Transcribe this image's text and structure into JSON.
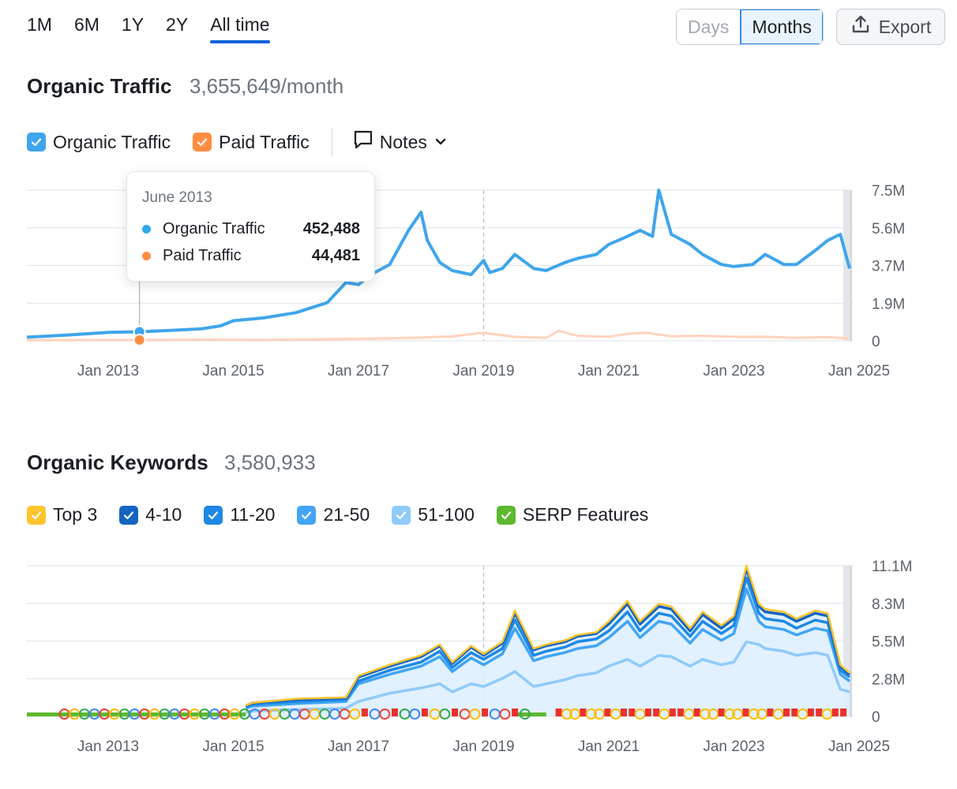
{
  "range_tabs": [
    "1M",
    "6M",
    "1Y",
    "2Y",
    "All time"
  ],
  "range_active": "All time",
  "granularity": {
    "days": "Days",
    "months": "Months",
    "selected": "Months"
  },
  "export_label": "Export",
  "traffic": {
    "title": "Organic Traffic",
    "value": "3,655,649/month",
    "legend": [
      {
        "label": "Organic Traffic",
        "color": "#3fa5ec",
        "checked": true
      },
      {
        "label": "Paid Traffic",
        "color": "#ff8c42",
        "checked": true
      }
    ],
    "notes_label": "Notes",
    "tooltip": {
      "date": "June 2013",
      "rows": [
        {
          "label": "Organic Traffic",
          "value": "452,488",
          "color": "#2fa8ea"
        },
        {
          "label": "Paid Traffic",
          "value": "44,481",
          "color": "#ff8c42"
        }
      ]
    }
  },
  "keywords": {
    "title": "Organic Keywords",
    "value": "3,580,933",
    "legend": [
      {
        "label": "Top 3",
        "color": "#ffc42e"
      },
      {
        "label": "4-10",
        "color": "#1565c0"
      },
      {
        "label": "11-20",
        "color": "#1e88e5"
      },
      {
        "label": "21-50",
        "color": "#42a5f5"
      },
      {
        "label": "51-100",
        "color": "#90caf9"
      },
      {
        "label": "SERP Features",
        "color": "#5cb82e"
      }
    ]
  },
  "colors": {
    "accent": "#0a63d6",
    "organic": "#3fa5ec",
    "paid": "#ffd3bd",
    "serp_green": "#5cb82e",
    "serp_red": "#e8312d"
  },
  "chart_data": [
    {
      "type": "line",
      "x_ticks": [
        "Jan 2013",
        "Jan 2015",
        "Jan 2017",
        "Jan 2019",
        "Jan 2021",
        "Jan 2023",
        "Jan 2025"
      ],
      "y_ticks": [
        "7.5M",
        "5.6M",
        "3.7M",
        "1.9M",
        "0"
      ],
      "ylim": [
        0,
        7500000
      ],
      "xlim": [
        2011.7,
        2024.9
      ],
      "grid": true,
      "series": [
        {
          "name": "Organic Traffic",
          "x": [
            2011.7,
            2012.0,
            2012.5,
            2013.0,
            2013.5,
            2014.0,
            2014.5,
            2014.8,
            2015.0,
            2015.5,
            2016.0,
            2016.5,
            2016.8,
            2017.0,
            2017.2,
            2017.5,
            2017.8,
            2018.0,
            2018.1,
            2018.3,
            2018.5,
            2018.8,
            2019.0,
            2019.1,
            2019.3,
            2019.5,
            2019.8,
            2020.0,
            2020.3,
            2020.5,
            2020.8,
            2021.0,
            2021.3,
            2021.5,
            2021.7,
            2021.8,
            2022.0,
            2022.3,
            2022.5,
            2022.8,
            2023.0,
            2023.3,
            2023.5,
            2023.8,
            2024.0,
            2024.3,
            2024.5,
            2024.7,
            2024.85
          ],
          "y": [
            180000,
            230000,
            320000,
            420000,
            452488,
            520000,
            600000,
            750000,
            1000000,
            1150000,
            1400000,
            1900000,
            2900000,
            2800000,
            3300000,
            3800000,
            5500000,
            6400000,
            5000000,
            3900000,
            3500000,
            3300000,
            4000000,
            3400000,
            3600000,
            4300000,
            3600000,
            3500000,
            3900000,
            4100000,
            4300000,
            4800000,
            5200000,
            5500000,
            5200000,
            7500000,
            5300000,
            4800000,
            4300000,
            3800000,
            3700000,
            3800000,
            4300000,
            3800000,
            3800000,
            4500000,
            5000000,
            5300000,
            3600000
          ]
        },
        {
          "name": "Paid Traffic",
          "x": [
            2011.7,
            2012.5,
            2013.0,
            2013.5,
            2014.5,
            2015.5,
            2016.5,
            2017.5,
            2018.0,
            2018.5,
            2019.0,
            2019.5,
            2020.0,
            2020.2,
            2020.5,
            2021.0,
            2021.3,
            2021.6,
            2022.0,
            2022.5,
            2023.0,
            2023.5,
            2024.0,
            2024.5,
            2024.85
          ],
          "y": [
            30000,
            40000,
            40000,
            44481,
            60000,
            50000,
            80000,
            120000,
            160000,
            220000,
            400000,
            200000,
            150000,
            500000,
            250000,
            200000,
            350000,
            400000,
            230000,
            250000,
            200000,
            200000,
            150000,
            180000,
            120000
          ]
        }
      ]
    },
    {
      "type": "area",
      "x_ticks": [
        "Jan 2013",
        "Jan 2015",
        "Jan 2017",
        "Jan 2019",
        "Jan 2021",
        "Jan 2023",
        "Jan 2025"
      ],
      "y_ticks": [
        "11.1M",
        "8.3M",
        "5.5M",
        "2.8M",
        "0"
      ],
      "ylim": [
        0,
        11100000
      ],
      "xlim": [
        2011.7,
        2024.9
      ],
      "grid": true,
      "x": [
        2015.2,
        2015.3,
        2016.0,
        2016.8,
        2017.0,
        2017.5,
        2018.0,
        2018.3,
        2018.5,
        2018.8,
        2019.0,
        2019.3,
        2019.5,
        2019.8,
        2020.0,
        2020.3,
        2020.5,
        2020.8,
        2021.0,
        2021.3,
        2021.5,
        2021.8,
        2022.0,
        2022.3,
        2022.5,
        2022.8,
        2023.0,
        2023.2,
        2023.4,
        2023.5,
        2023.8,
        2024.0,
        2024.3,
        2024.5,
        2024.7,
        2024.85
      ],
      "series": [
        {
          "name": "Top 3",
          "values": [
            0.8,
            1.0,
            1.3,
            1.4,
            3.0,
            3.8,
            4.5,
            5.3,
            4.0,
            5.2,
            4.6,
            5.5,
            7.8,
            5.0,
            5.3,
            5.6,
            6.0,
            6.2,
            7.0,
            8.5,
            7.0,
            8.3,
            8.1,
            6.5,
            7.7,
            6.7,
            7.4,
            11.1,
            8.3,
            7.9,
            7.7,
            7.2,
            7.8,
            7.6,
            3.8,
            3.2
          ]
        },
        {
          "name": "4-10",
          "values": [
            0.78,
            0.98,
            1.25,
            1.35,
            2.9,
            3.7,
            4.4,
            5.2,
            3.9,
            5.1,
            4.5,
            5.4,
            7.6,
            4.9,
            5.2,
            5.5,
            5.9,
            6.1,
            6.8,
            8.3,
            6.8,
            8.1,
            7.9,
            6.3,
            7.5,
            6.5,
            7.2,
            10.9,
            8.1,
            7.7,
            7.5,
            7.0,
            7.6,
            7.4,
            3.7,
            3.1
          ]
        },
        {
          "name": "11-20",
          "values": [
            0.7,
            0.9,
            1.1,
            1.25,
            2.6,
            3.4,
            4.0,
            4.8,
            3.6,
            4.7,
            4.2,
            5.0,
            7.1,
            4.5,
            4.8,
            5.1,
            5.5,
            5.7,
            6.3,
            7.7,
            6.3,
            7.6,
            7.4,
            5.9,
            7.0,
            6.1,
            6.7,
            10.2,
            7.6,
            7.2,
            7.0,
            6.5,
            7.1,
            6.9,
            3.4,
            2.9
          ]
        },
        {
          "name": "21-50",
          "values": [
            0.6,
            0.75,
            0.95,
            1.1,
            2.4,
            3.1,
            3.7,
            4.4,
            3.3,
            4.3,
            3.8,
            4.6,
            6.5,
            4.1,
            4.4,
            4.7,
            5.0,
            5.2,
            5.8,
            7.0,
            5.8,
            7.0,
            6.8,
            5.4,
            6.4,
            5.6,
            6.1,
            9.4,
            7.0,
            6.6,
            6.4,
            6.0,
            6.5,
            6.3,
            3.1,
            2.6
          ]
        },
        {
          "name": "51-100",
          "values": [
            0.3,
            0.4,
            0.5,
            0.6,
            1.1,
            1.7,
            2.1,
            2.4,
            1.8,
            2.4,
            2.2,
            2.8,
            3.3,
            2.2,
            2.4,
            2.7,
            3.0,
            3.2,
            3.7,
            4.2,
            3.7,
            4.5,
            4.4,
            3.7,
            4.2,
            3.8,
            4.0,
            5.5,
            5.3,
            5.0,
            4.8,
            4.5,
            4.7,
            4.5,
            2.0,
            1.8
          ]
        }
      ],
      "units": "M"
    }
  ]
}
